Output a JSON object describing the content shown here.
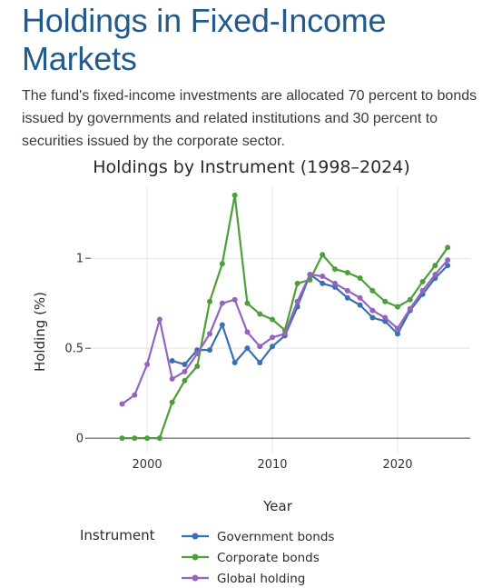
{
  "article": {
    "headline": "Holdings in Fixed-Income Markets",
    "lede": "The fund's fixed-income investments are allocated 70 percent to bonds issued by governments and related institutions and 30 percent to securities issued by the corporate sector."
  },
  "chart_data": {
    "type": "line",
    "title": "Holdings by Instrument (1998–2024)",
    "xlabel": "Year",
    "ylabel": "Holding (%)",
    "xlim": [
      1995.5,
      2025.8
    ],
    "ylim": [
      -0.08,
      1.4
    ],
    "x_ticks": [
      2000,
      2010,
      2020
    ],
    "y_ticks": [
      0,
      0.5,
      1
    ],
    "y_tick_labels": [
      "0",
      "0.5",
      "1"
    ],
    "grid": true,
    "legend": {
      "title": "Instrument",
      "position": "bottom-left"
    },
    "series": [
      {
        "name": "Government bonds",
        "color": "#3a6fb0",
        "x": [
          2002,
          2003,
          2004,
          2005,
          2006,
          2007,
          2008,
          2009,
          2010,
          2011,
          2012,
          2013,
          2014,
          2015,
          2016,
          2017,
          2018,
          2019,
          2020,
          2021,
          2022,
          2023,
          2024
        ],
        "values": [
          0.43,
          0.41,
          0.49,
          0.49,
          0.63,
          0.42,
          0.5,
          0.42,
          0.51,
          0.57,
          0.73,
          0.91,
          0.86,
          0.84,
          0.78,
          0.74,
          0.67,
          0.65,
          0.58,
          0.71,
          0.8,
          0.89,
          0.96
        ]
      },
      {
        "name": "Corporate bonds",
        "color": "#4e9e3a",
        "x": [
          1998,
          1999,
          2000,
          2001,
          2002,
          2003,
          2004,
          2005,
          2006,
          2007,
          2008,
          2009,
          2010,
          2011,
          2012,
          2013,
          2014,
          2015,
          2016,
          2017,
          2018,
          2019,
          2020,
          2021,
          2022,
          2023,
          2024
        ],
        "values": [
          0,
          0,
          0,
          0,
          0.2,
          0.32,
          0.4,
          0.76,
          0.97,
          1.35,
          0.75,
          0.69,
          0.66,
          0.6,
          0.86,
          0.88,
          1.02,
          0.94,
          0.92,
          0.89,
          0.82,
          0.76,
          0.73,
          0.77,
          0.87,
          0.96,
          1.06
        ]
      },
      {
        "name": "Global holding",
        "color": "#9564bf",
        "x": [
          1998,
          1999,
          2000,
          2001,
          2002,
          2003,
          2004,
          2005,
          2006,
          2007,
          2008,
          2009,
          2010,
          2011,
          2012,
          2013,
          2014,
          2015,
          2016,
          2017,
          2018,
          2019,
          2020,
          2021,
          2022,
          2023,
          2024
        ],
        "values": [
          0.19,
          0.24,
          0.41,
          0.66,
          0.33,
          0.37,
          0.47,
          0.58,
          0.75,
          0.77,
          0.59,
          0.51,
          0.56,
          0.58,
          0.76,
          0.91,
          0.9,
          0.86,
          0.82,
          0.78,
          0.71,
          0.67,
          0.61,
          0.72,
          0.82,
          0.91,
          0.99
        ]
      }
    ]
  }
}
